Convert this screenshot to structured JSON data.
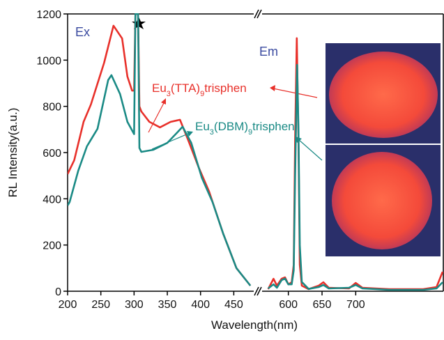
{
  "chart_data": {
    "type": "line",
    "x_label": "Wavelength(nm)",
    "y_label": "RL Intensity(a.u.)",
    "annotations": [
      "Ex",
      "Em"
    ],
    "xlim": [
      200,
      830
    ],
    "xbreak": [
      480,
      561
    ],
    "xticks": [
      200,
      250,
      300,
      350,
      400,
      450,
      600,
      650,
      700
    ],
    "ylim": [
      0,
      1200
    ],
    "yticks": [
      0,
      200,
      400,
      600,
      800,
      1000,
      1200
    ],
    "series": [
      {
        "name": "Eu3(TTA)9trisphen",
        "color": "#e8302a",
        "x": [
          200,
          210,
          224,
          235,
          255,
          269,
          282,
          290,
          297,
          300,
          302,
          306,
          308,
          311,
          323,
          339,
          355,
          369,
          381,
          397,
          413,
          434,
          454,
          475,
          570,
          578,
          583,
          590,
          595,
          600,
          605,
          608,
          610,
          612.5,
          615,
          617,
          620,
          630,
          645,
          652,
          660,
          690,
          700,
          710,
          750,
          800,
          820,
          829
        ],
        "values": [
          507,
          567,
          733,
          808,
          989,
          1149,
          1094,
          929,
          868,
          868,
          1200,
          1200,
          800,
          778,
          733,
          709,
          733,
          742,
          657,
          537,
          431,
          250,
          100,
          24,
          9,
          54,
          24,
          54,
          60,
          30,
          39,
          115,
          657,
          1095,
          657,
          115,
          24,
          9,
          24,
          39,
          15,
          12,
          36,
          15,
          9,
          9,
          18,
          84
        ]
      },
      {
        "name": "Eu3(DBM)9trisphen",
        "color": "#1a8a85",
        "x": [
          200,
          203,
          216,
          229,
          245,
          261,
          266,
          279,
          290,
          300,
          302,
          306,
          308,
          311,
          329,
          350,
          365,
          373,
          386,
          402,
          418,
          434,
          454,
          475,
          570,
          578,
          583,
          590,
          595,
          600,
          605,
          608,
          610,
          613,
          615,
          617,
          620,
          630,
          645,
          652,
          660,
          690,
          700,
          710,
          750,
          800,
          820,
          829
        ],
        "values": [
          371,
          386,
          522,
          627,
          703,
          914,
          935,
          853,
          733,
          680,
          1200,
          1200,
          620,
          603,
          612,
          642,
          687,
          712,
          642,
          491,
          386,
          250,
          100,
          24,
          12,
          30,
          15,
          48,
          55,
          30,
          30,
          90,
          500,
          980,
          700,
          200,
          40,
          10,
          18,
          27,
          12,
          15,
          27,
          12,
          6,
          6,
          12,
          39
        ]
      }
    ]
  }
}
